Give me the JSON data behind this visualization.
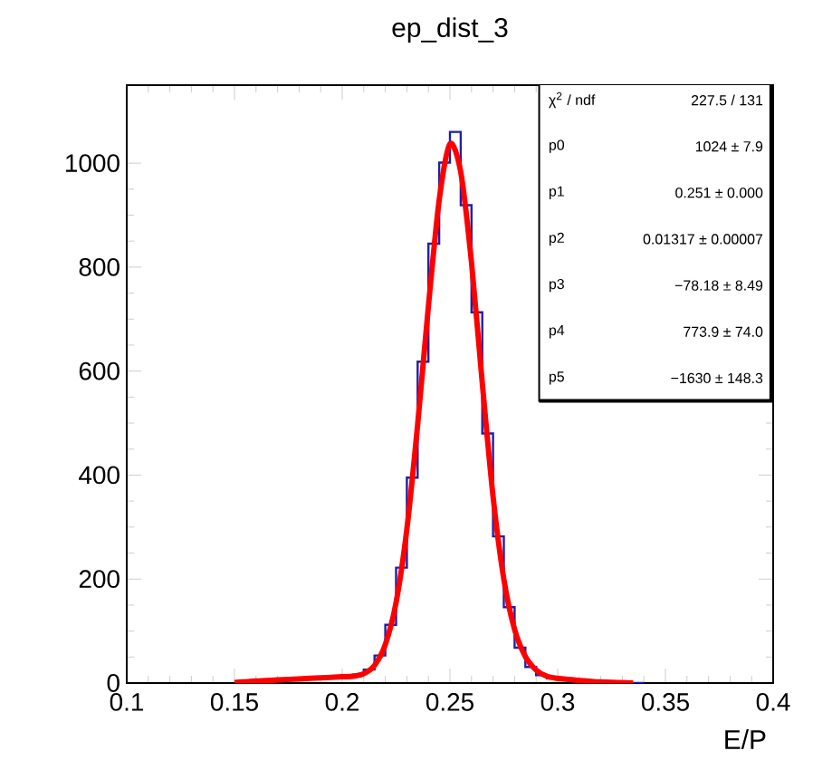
{
  "chart_data": {
    "type": "histogram",
    "title": "ep_dist_3",
    "xlabel": "E/P",
    "bins": [
      0.15,
      0.155,
      0.16,
      0.165,
      0.17,
      0.175,
      0.18,
      0.185,
      0.19,
      0.195,
      0.2,
      0.205,
      0.21,
      0.215,
      0.22,
      0.225,
      0.23,
      0.235,
      0.24,
      0.245,
      0.25,
      0.255,
      0.26,
      0.265,
      0.27,
      0.275,
      0.28,
      0.285,
      0.29,
      0.295,
      0.3,
      0.305,
      0.31,
      0.315,
      0.32,
      0.325,
      0.33,
      0.335,
      0.34
    ],
    "values": [
      2,
      3,
      5,
      6,
      7,
      8,
      9,
      10,
      10,
      11,
      13,
      16,
      26,
      53,
      112,
      222,
      395,
      618,
      845,
      1001,
      1060,
      919,
      713,
      480,
      282,
      146,
      68,
      31,
      15,
      9,
      7,
      6,
      4,
      3,
      2,
      1,
      0,
      0
    ],
    "color": "#1f1fa8",
    "series": [
      {
        "type": "line",
        "color": "#ff0000",
        "x": [
          0.15,
          0.16,
          0.17,
          0.18,
          0.19,
          0.2,
          0.205,
          0.21,
          0.215,
          0.22,
          0.225,
          0.23,
          0.235,
          0.24,
          0.245,
          0.25,
          0.255,
          0.26,
          0.265,
          0.27,
          0.275,
          0.28,
          0.285,
          0.29,
          0.295,
          0.3,
          0.31,
          0.32,
          0.335
        ],
        "values": [
          1,
          4,
          6,
          8,
          10,
          12,
          13,
          18,
          34,
          74,
          155,
          296,
          497,
          725,
          929,
          1037,
          983,
          809,
          577,
          359,
          200,
          103,
          51,
          25,
          13,
          9,
          5,
          2,
          0
        ]
      }
    ],
    "xlim": [
      0.1,
      0.4
    ],
    "ylim": [
      0,
      1150
    ],
    "xticks": [
      0.1,
      0.15,
      0.2,
      0.25,
      0.3,
      0.35,
      0.4
    ],
    "yticks": [
      0,
      200,
      400,
      600,
      800,
      1000
    ],
    "annotations": [
      "χ$^{2}$ / ndf",
      "227.5 / 131",
      "p0",
      "1024 ± 7.9",
      "p1",
      "0.251 ± 0.000",
      "p2",
      "0.01317 ± 0.00007",
      "p3",
      "−78.18 ± 8.49",
      "p4",
      "773.9 ± 74.0",
      "p5",
      "−1630 ± 148.3"
    ],
    "grid": false
  }
}
